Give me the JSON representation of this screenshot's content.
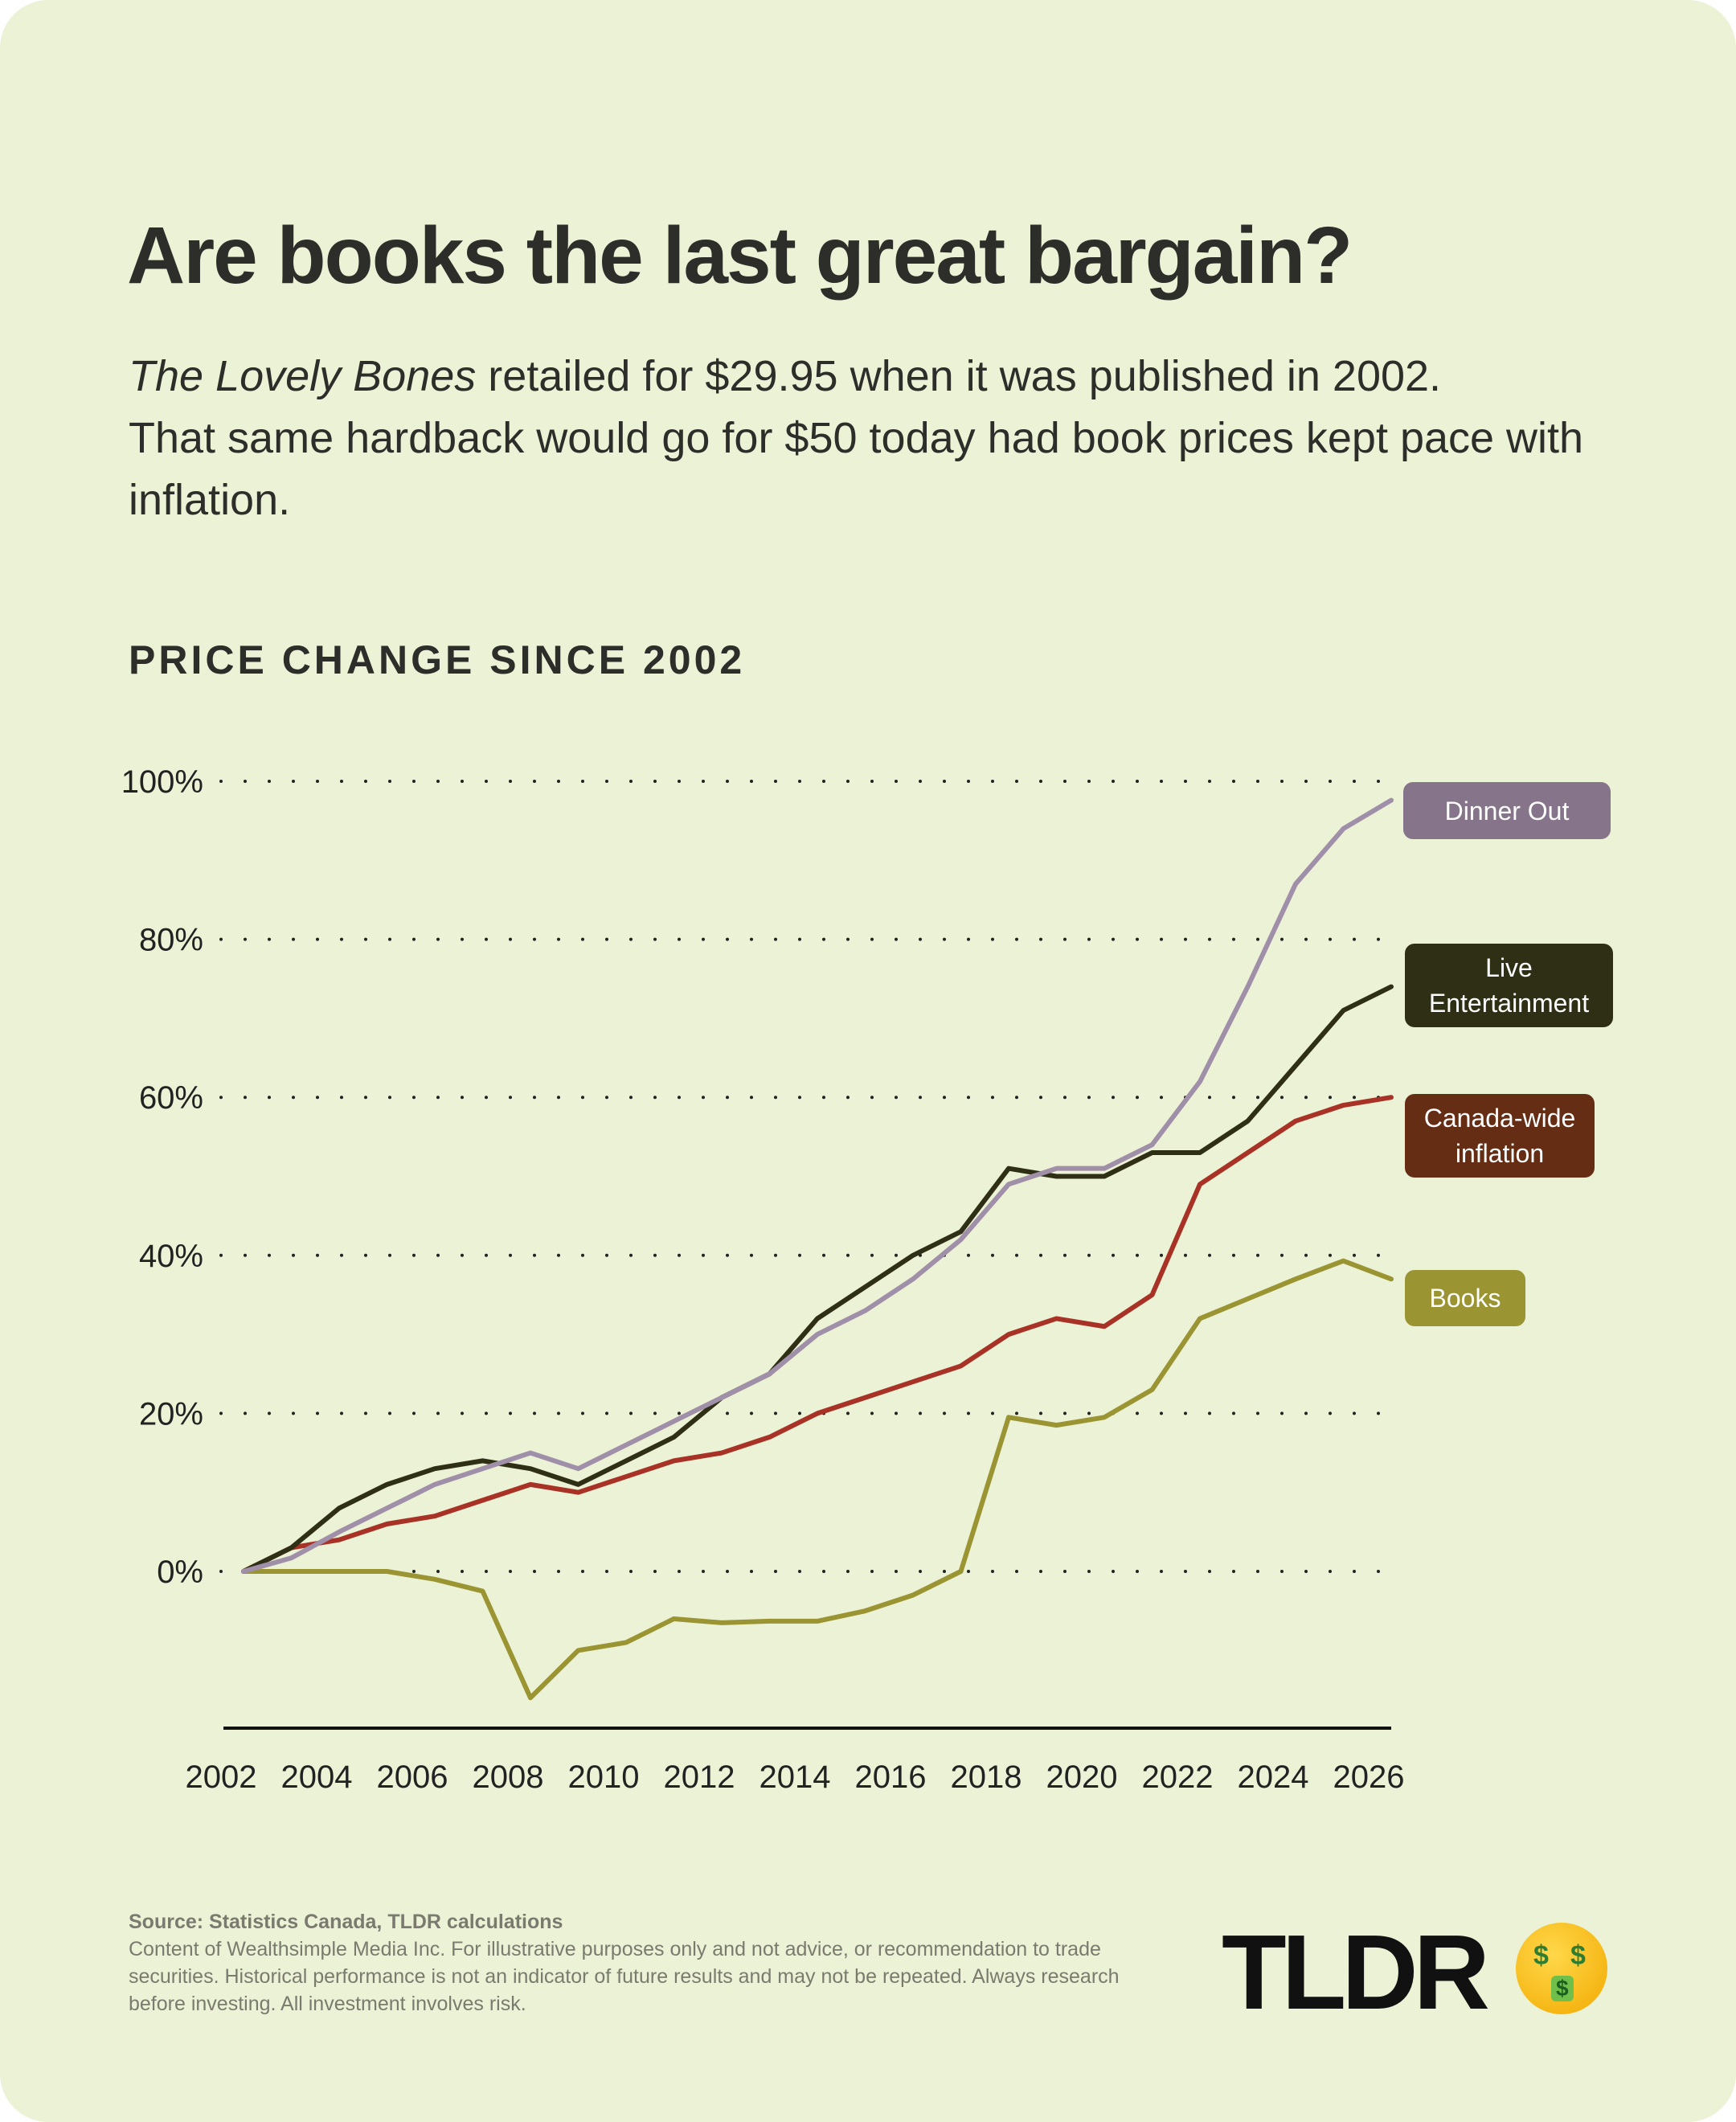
{
  "title": "Are books the last great bargain?",
  "subtitle": {
    "book_title": "The Lovely Bones",
    "line1_rest": " retailed for $29.95 when it was published in 2002.",
    "line2": "That same hardback would go for $50 today had book prices kept pace with inflation."
  },
  "section_title": "PRICE CHANGE SINCE 2002",
  "chart_data": {
    "type": "line",
    "title": "PRICE CHANGE SINCE 2002",
    "x": [
      2002,
      2003,
      2004,
      2005,
      2006,
      2007,
      2008,
      2009,
      2010,
      2011,
      2012,
      2013,
      2014,
      2015,
      2016,
      2017,
      2018,
      2019,
      2020,
      2021,
      2022,
      2023,
      2024,
      2025,
      2026
    ],
    "xticks": [
      "2002",
      "2004",
      "2006",
      "2008",
      "2010",
      "2012",
      "2014",
      "2016",
      "2018",
      "2020",
      "2022",
      "2024",
      "2026"
    ],
    "yticks": [
      "0%",
      "20%",
      "40%",
      "60%",
      "80%",
      "100%"
    ],
    "ylim": [
      -20,
      100
    ],
    "grid": "horizontal dotted",
    "legend": "right, end-of-line labels",
    "series": [
      {
        "name": "Dinner Out",
        "color": "#a08fa8",
        "label_color": "#85748a",
        "values": [
          0,
          1.7,
          5,
          8,
          11,
          13,
          15,
          13,
          16,
          19,
          22,
          25,
          30,
          33,
          37,
          42,
          49,
          51,
          51,
          54,
          62,
          74,
          87,
          94,
          97.6
        ]
      },
      {
        "name": "Live Entertainment",
        "color": "#2f2f15",
        "label_color": "#2f2f15",
        "values": [
          0,
          3,
          8,
          11,
          13,
          14,
          13,
          11,
          14,
          17,
          22,
          25,
          32,
          36,
          40,
          43,
          51,
          50,
          50,
          53,
          53,
          57,
          64,
          71,
          74
        ]
      },
      {
        "name": "Canada-wide inflation",
        "color": "#a83226",
        "label_color": "#652e14",
        "values": [
          0,
          3,
          4,
          6,
          7,
          9,
          11,
          10,
          12,
          14,
          15,
          17,
          20,
          22,
          24,
          26,
          30,
          32,
          31,
          35,
          49,
          53,
          57,
          59,
          60
        ]
      },
      {
        "name": "Books",
        "color": "#9a9432",
        "label_color": "#9a9432",
        "values": [
          0,
          0,
          0,
          0,
          -1,
          -2.5,
          -16,
          -10,
          -9,
          -6,
          -6.5,
          -6.3,
          -6.3,
          -5,
          -3,
          0,
          19.5,
          18.5,
          19.5,
          23,
          32,
          34.5,
          37,
          39.3,
          37
        ]
      }
    ]
  },
  "labels": {
    "dinner": "Dinner Out",
    "live_1": "Live",
    "live_2": "Entertainment",
    "infl_1": "Canada-wide",
    "infl_2": "inflation",
    "books": "Books"
  },
  "footer": {
    "source": "Source: Statistics Canada, TLDR calculations",
    "disclaimer": "Content of Wealthsimple Media Inc. For illustrative purposes only and not advice, or recommendation to trade securities. Historical performance is not an indicator of future results and may not be repeated. Always research before investing. All investment involves risk."
  },
  "logo": {
    "text": "TLDR",
    "emoji": "money-mouth-face"
  }
}
